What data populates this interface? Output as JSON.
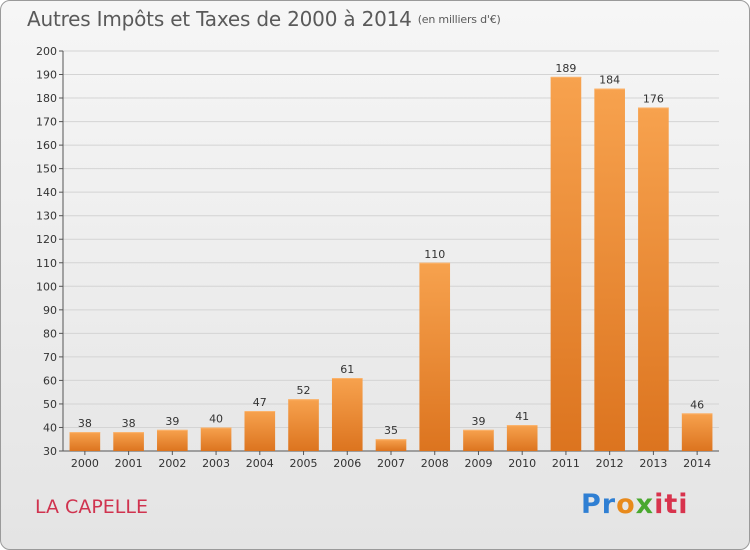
{
  "chart_data": {
    "type": "bar",
    "title": "Autres Impôts et Taxes de 2000 à 2014",
    "subtitle": "(en milliers d'€)",
    "categories": [
      "2000",
      "2001",
      "2002",
      "2003",
      "2004",
      "2005",
      "2006",
      "2007",
      "2008",
      "2009",
      "2010",
      "2011",
      "2012",
      "2013",
      "2014"
    ],
    "values": [
      38,
      38,
      39,
      40,
      47,
      52,
      61,
      35,
      110,
      39,
      41,
      189,
      184,
      176,
      46
    ],
    "ylim": [
      30,
      200
    ],
    "yticks": [
      30,
      40,
      50,
      60,
      70,
      80,
      90,
      100,
      110,
      120,
      130,
      140,
      150,
      160,
      170,
      180,
      190,
      200
    ],
    "grid": true,
    "bar_color": "#f0923a"
  },
  "footer": {
    "place": "LA CAPELLE",
    "brand": [
      "Pr",
      "o",
      "x",
      "iti"
    ]
  }
}
